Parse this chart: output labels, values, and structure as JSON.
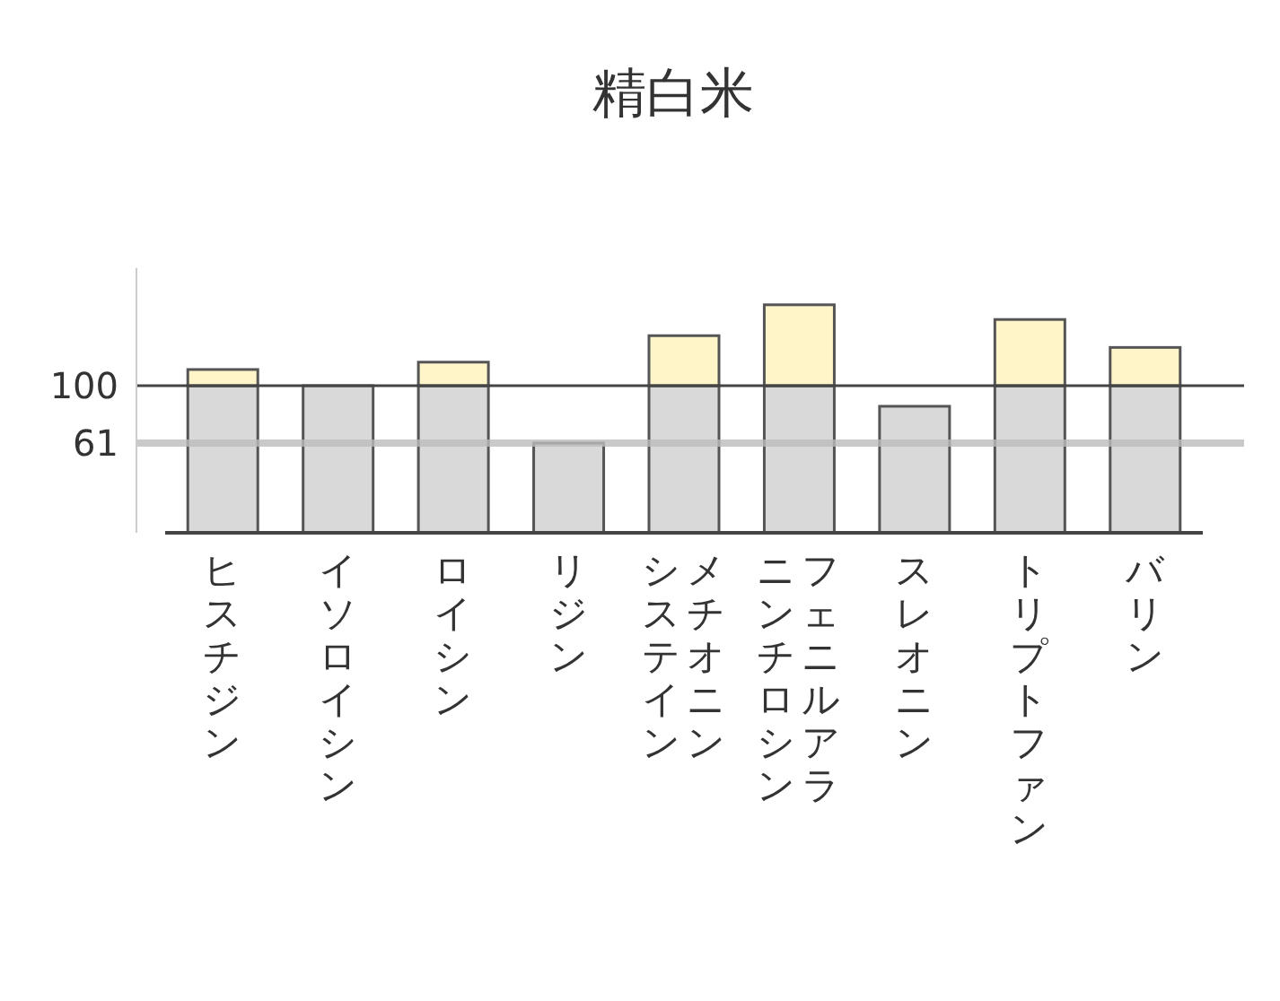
{
  "chart_data": {
    "type": "bar",
    "title": "精白米",
    "categories": [
      "ヒスチジン",
      "イソロイシン",
      "ロイシン",
      "リジン",
      "メチオニンシステイン",
      "フェニルアラニンチロシン",
      "スレオニン",
      "トリプトファン",
      "バリン"
    ],
    "stacked": true,
    "series": [
      {
        "color": "#d9d9d9",
        "values": [
          100,
          100,
          100,
          61,
          100,
          100,
          86,
          100,
          100
        ]
      },
      {
        "color": "#fff5c8",
        "values": [
          11,
          null,
          16,
          null,
          34,
          55,
          null,
          45,
          26
        ]
      }
    ],
    "ylim": [
      0,
      180
    ],
    "yticks": [
      61,
      100
    ],
    "ref_lines": [
      {
        "axis": "y",
        "value": 100,
        "color": "#444444"
      },
      {
        "axis": "y",
        "value": 61,
        "color": "#bbbbbb"
      }
    ]
  }
}
